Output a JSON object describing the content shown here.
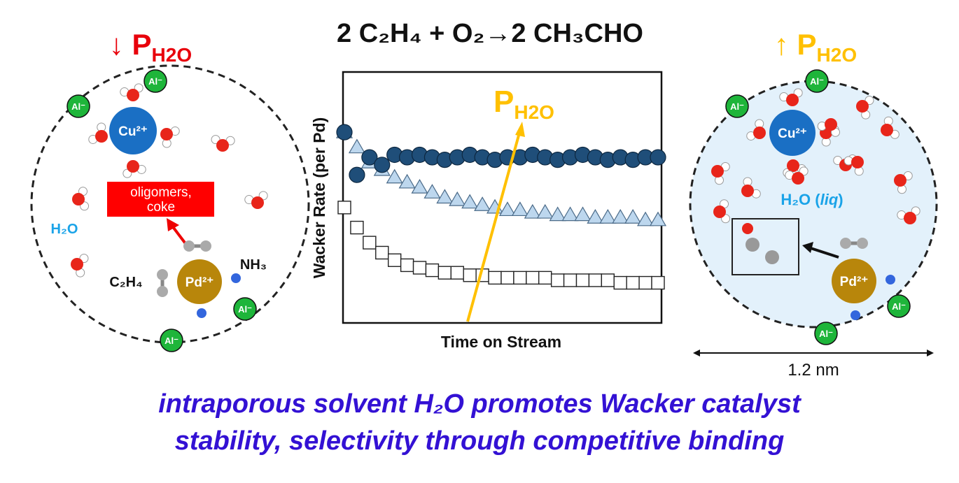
{
  "title": "2 C₂H₄ + O₂→2 CH₃CHO",
  "left": {
    "arrow": "↓",
    "p": "P",
    "sub": "H2O",
    "cu": "Cu²⁺",
    "pd": "Pd²⁺",
    "al": "Al⁻",
    "water": "H₂O",
    "box_lines": [
      "oligomers,",
      "coke"
    ],
    "ethylene": "C₂H₄",
    "ammonia": "NH₃"
  },
  "right": {
    "arrow": "↑",
    "p": "P",
    "sub": "H2O",
    "cu": "Cu²⁺",
    "pd": "Pd²⁺",
    "al": "Al⁻",
    "water_parts": [
      "H₂O (",
      "liq",
      ")"
    ],
    "scale": "1.2 nm"
  },
  "chart_data": {
    "type": "scatter",
    "ylabel": "Wacker Rate (per Pd)",
    "xlabel": "Time on Stream",
    "arrow_label": {
      "p": "P",
      "sub": "H2O"
    },
    "xlim": [
      0,
      100
    ],
    "ylim": [
      0,
      100
    ],
    "x": [
      0,
      4,
      8,
      12,
      16,
      20,
      24,
      28,
      32,
      36,
      40,
      44,
      48,
      52,
      56,
      60,
      64,
      68,
      72,
      76,
      80,
      84,
      88,
      92,
      96,
      100
    ],
    "series": [
      {
        "marker": "circle",
        "color": "#1f4e79",
        "values": [
          76,
          59,
          66,
          63,
          67,
          66,
          67,
          66,
          65,
          66,
          67,
          66,
          65,
          66,
          66,
          67,
          66,
          65,
          66,
          67,
          66,
          65,
          66,
          65,
          66,
          66
        ]
      },
      {
        "marker": "triangle",
        "color": "#bdd7ee",
        "values": [
          76,
          70,
          64,
          61,
          58,
          56,
          54,
          52,
          50,
          49,
          48,
          47,
          46,
          45,
          45,
          44,
          44,
          43,
          43,
          43,
          42,
          42,
          42,
          42,
          41,
          41
        ]
      },
      {
        "marker": "square",
        "color": "#ffffff",
        "values": [
          46,
          38,
          32,
          28,
          25,
          23,
          22,
          21,
          20,
          20,
          19,
          19,
          18,
          18,
          18,
          18,
          18,
          17,
          17,
          17,
          17,
          17,
          16,
          16,
          16,
          16
        ]
      }
    ]
  },
  "caption": [
    "intraporous solvent H₂O promotes Wacker catalyst",
    "stability, selectivity through competitive binding"
  ]
}
